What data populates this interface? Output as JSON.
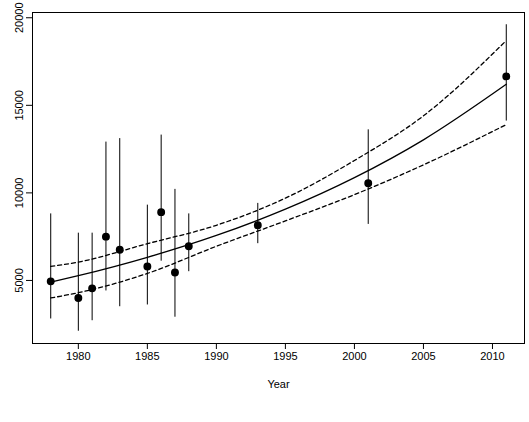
{
  "chart_data": {
    "type": "scatter",
    "x_label": "Year",
    "x": [
      1978,
      1980,
      1981,
      1982,
      1983,
      1985,
      1986,
      1987,
      1988,
      1993,
      2001,
      2011
    ],
    "values": [
      4950,
      4000,
      4550,
      7500,
      6750,
      5800,
      8900,
      5450,
      6950,
      8150,
      10550,
      16650
    ],
    "error_low": [
      2800,
      2100,
      2700,
      4400,
      3500,
      3600,
      6100,
      2900,
      5500,
      7100,
      8200,
      14100
    ],
    "error_high": [
      8800,
      7700,
      7700,
      12900,
      13100,
      9300,
      13300,
      10200,
      8800,
      9400,
      13600,
      19600
    ],
    "color": "#000000",
    "marker": "circle",
    "lines": [
      {
        "x": [
          1978,
          1980,
          1985,
          1990,
          1995,
          2000,
          2005,
          2011
        ],
        "values": [
          4900,
          5270,
          6320,
          7570,
          9070,
          10870,
          13030,
          16200
        ],
        "line_style": "solid"
      },
      {
        "x": [
          1978,
          1980,
          1985,
          1990,
          1995,
          2000,
          2005,
          2011
        ],
        "values": [
          4000,
          4300,
          5400,
          6950,
          8400,
          9900,
          11600,
          13900
        ],
        "line_style": "dashed"
      },
      {
        "x": [
          1978,
          1980,
          1985,
          1990,
          1995,
          2000,
          2005,
          2011
        ],
        "values": [
          5800,
          6050,
          7100,
          8150,
          9700,
          11850,
          14400,
          18700
        ],
        "line_style": "dashed"
      }
    ],
    "xlim": [
      1976.68,
      2012.32
    ],
    "ylim": [
      1400,
      20300
    ],
    "xticks": [
      1980,
      1985,
      1990,
      1995,
      2000,
      2005,
      2010
    ],
    "yticks": [
      5000,
      10000,
      15000,
      20000
    ],
    "grid": false
  }
}
